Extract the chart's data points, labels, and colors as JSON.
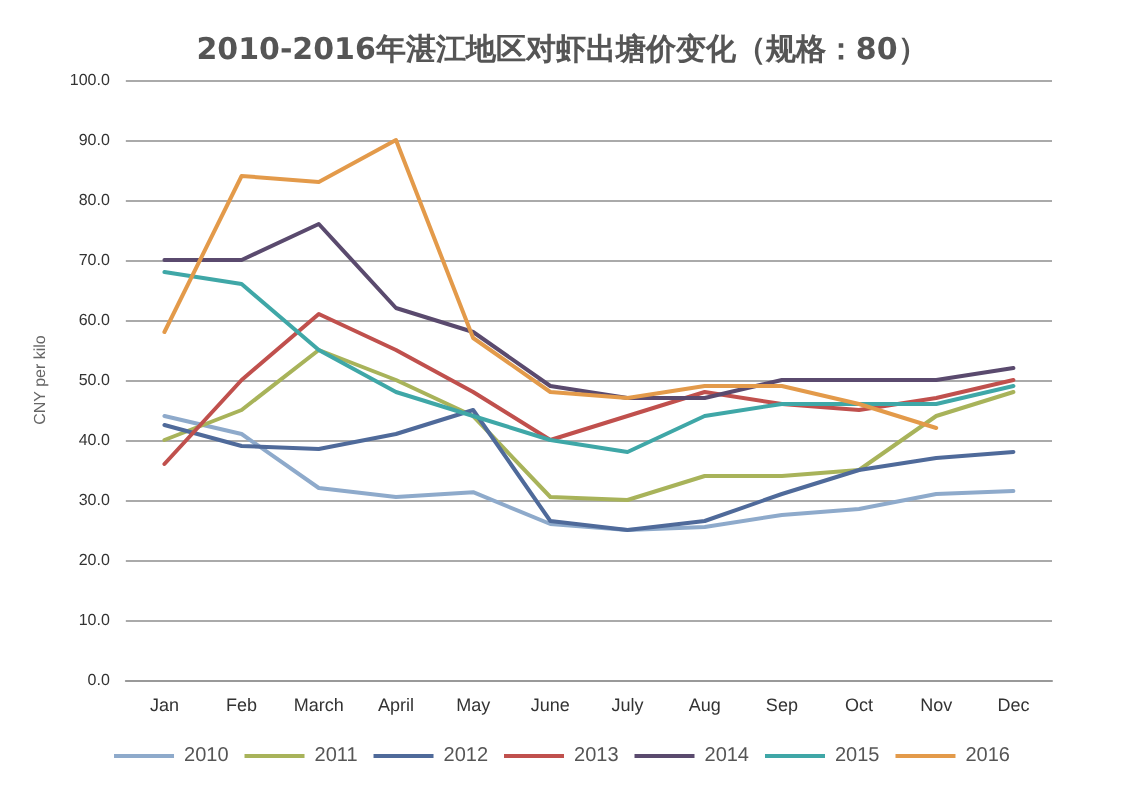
{
  "chart_data": {
    "type": "line",
    "title": "2010-2016年湛江地区对虾出塘价变化（规格：80）",
    "ylabel": "CNY per kilo",
    "categories": [
      "Jan",
      "Feb",
      "March",
      "April",
      "May",
      "June",
      "July",
      "Aug",
      "Sep",
      "Oct",
      "Nov",
      "Dec"
    ],
    "series": [
      {
        "name": "2010",
        "color": "#8eaacb",
        "values": [
          44,
          41,
          32,
          30.5,
          31.3,
          26,
          25,
          25.5,
          27.5,
          28.5,
          31,
          31.5
        ]
      },
      {
        "name": "2011",
        "color": "#a8b35a",
        "values": [
          40,
          45,
          55,
          50,
          44,
          30.5,
          30,
          34,
          34,
          35,
          44,
          48
        ]
      },
      {
        "name": "2012",
        "color": "#4f6a9a",
        "values": [
          42.5,
          39,
          38.5,
          41,
          45,
          26.5,
          25,
          26.5,
          31,
          35,
          37,
          38
        ]
      },
      {
        "name": "2013",
        "color": "#c0504d",
        "values": [
          36,
          50,
          61,
          55,
          48,
          40,
          44,
          48,
          46,
          45,
          47,
          50
        ]
      },
      {
        "name": "2014",
        "color": "#5a4a6e",
        "values": [
          70,
          70,
          76,
          62,
          58,
          49,
          47,
          47,
          50,
          50,
          50,
          52
        ]
      },
      {
        "name": "2015",
        "color": "#3fa7a7",
        "values": [
          68,
          66,
          55,
          48,
          44,
          40,
          38,
          44,
          46,
          46,
          46,
          49
        ]
      },
      {
        "name": "2016",
        "color": "#e39a4a",
        "values": [
          58,
          84,
          83,
          90,
          57,
          48,
          47,
          49,
          49,
          46,
          42,
          null
        ]
      }
    ],
    "ylim": [
      0,
      100
    ],
    "yticks": [
      {
        "value": 0,
        "label": "0.0"
      },
      {
        "value": 10,
        "label": "10.0"
      },
      {
        "value": 20,
        "label": "20.0"
      },
      {
        "value": 30,
        "label": "30.0"
      },
      {
        "value": 40,
        "label": "40.0"
      },
      {
        "value": 50,
        "label": "50.0"
      },
      {
        "value": 60,
        "label": "60.0"
      },
      {
        "value": 70,
        "label": "70.0"
      },
      {
        "value": 80,
        "label": "80.0"
      },
      {
        "value": 90,
        "label": "90.0"
      },
      {
        "value": 100,
        "label": "100.0"
      }
    ],
    "grid": "y",
    "legend": "bottom",
    "marker": "none",
    "line_style": "solid"
  }
}
